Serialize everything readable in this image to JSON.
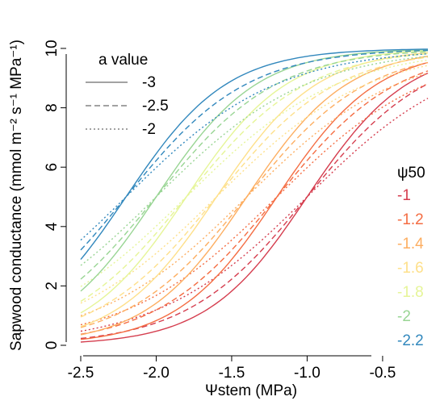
{
  "chart_data": {
    "type": "line",
    "xlabel": "Ψstem (MPa)",
    "ylabel": "Sapwood conductance (mmol m⁻² s⁻¹ MPa⁻¹)",
    "xlim": [
      -2.5,
      -0.2
    ],
    "ylim": [
      0,
      10
    ],
    "x_ticks": [
      -2.5,
      -2.0,
      -1.5,
      -1.0,
      -0.5
    ],
    "x_tick_labels": [
      "-2.5",
      "-2.0",
      "-1.5",
      "-1.0",
      "-0.5"
    ],
    "y_ticks": [
      0,
      2,
      4,
      6,
      8,
      10
    ],
    "y_tick_labels": [
      "0",
      "2",
      "4",
      "6",
      "8",
      "10"
    ],
    "gmax": 10,
    "legend_a": {
      "title": "a value",
      "placement": "top-left",
      "entries": [
        {
          "label": "-3",
          "dash": "solid"
        },
        {
          "label": "-2.5",
          "dash": "dashed"
        },
        {
          "label": "-2",
          "dash": "dotted"
        }
      ]
    },
    "legend_psi": {
      "title": "ψ50",
      "placement": "right",
      "entries": [
        {
          "label": "-1",
          "color": "#d53e4f"
        },
        {
          "label": "-1.2",
          "color": "#f46d43"
        },
        {
          "label": "-1.4",
          "color": "#fdae61"
        },
        {
          "label": "-1.6",
          "color": "#fee08b"
        },
        {
          "label": "-1.8",
          "color": "#e6f598"
        },
        {
          "label": "-2",
          "color": "#99d594"
        },
        {
          "label": "-2.2",
          "color": "#3288bd"
        }
      ]
    },
    "series": [
      {
        "psi50": -1.0,
        "a": -3.0,
        "x": [
          -2.5,
          -2.25,
          -2.0,
          -1.75,
          -1.5,
          -1.25,
          -1.0,
          -0.75,
          -0.5,
          -0.2
        ],
        "y": [
          0.11,
          0.23,
          0.47,
          0.98,
          1.92,
          3.47,
          5.0,
          6.66,
          8.18,
          9.17
        ]
      },
      {
        "psi50": -1.0,
        "a": -2.5,
        "x": [
          -2.5,
          -2.25,
          -2.0,
          -1.75,
          -1.5,
          -1.25,
          -1.0,
          -0.75,
          -0.5,
          -0.2
        ],
        "y": [
          0.23,
          0.43,
          0.76,
          1.33,
          2.23,
          3.55,
          5.0,
          6.45,
          7.78,
          8.8
        ]
      },
      {
        "psi50": -1.0,
        "a": -2.0,
        "x": [
          -2.5,
          -2.25,
          -2.0,
          -1.75,
          -1.5,
          -1.25,
          -1.0,
          -0.75,
          -0.5,
          -0.2
        ],
        "y": [
          0.47,
          0.76,
          1.19,
          1.82,
          2.69,
          3.78,
          5.0,
          6.22,
          7.31,
          8.32
        ]
      },
      {
        "psi50": -1.2,
        "a": -3.0,
        "x": [
          -2.5,
          -2.25,
          -2.0,
          -1.75,
          -1.5,
          -1.25,
          -1.0,
          -0.75,
          -0.5,
          -0.2
        ],
        "y": [
          0.2,
          0.41,
          0.83,
          1.61,
          2.89,
          4.63,
          6.35,
          7.96,
          8.91,
          9.53
        ]
      },
      {
        "psi50": -1.2,
        "a": -2.5,
        "x": [
          -2.5,
          -2.25,
          -2.0,
          -1.75,
          -1.5,
          -1.25,
          -1.0,
          -0.75,
          -0.5,
          -0.2
        ],
        "y": [
          0.39,
          0.71,
          1.21,
          2.02,
          3.21,
          4.69,
          6.22,
          7.55,
          8.52,
          9.24
        ]
      },
      {
        "psi50": -1.2,
        "a": -2.0,
        "x": [
          -2.5,
          -2.25,
          -2.0,
          -1.75,
          -1.5,
          -1.25,
          -1.0,
          -0.75,
          -0.5,
          -0.2
        ],
        "y": [
          0.69,
          1.09,
          1.68,
          2.46,
          3.54,
          4.75,
          5.99,
          7.11,
          8.02,
          8.81
        ]
      },
      {
        "psi50": -1.4,
        "a": -3.0,
        "x": [
          -2.5,
          -2.25,
          -2.0,
          -1.75,
          -1.5,
          -1.25,
          -1.0,
          -0.75,
          -0.5,
          -0.2
        ],
        "y": [
          0.36,
          0.75,
          1.47,
          2.62,
          4.18,
          6.0,
          7.63,
          8.75,
          9.37,
          9.73
        ]
      },
      {
        "psi50": -1.4,
        "a": -2.5,
        "x": [
          -2.5,
          -2.25,
          -2.0,
          -1.75,
          -1.5,
          -1.25,
          -1.0,
          -0.75,
          -0.5,
          -0.2
        ],
        "y": [
          0.63,
          1.13,
          1.91,
          3.02,
          4.37,
          5.87,
          7.23,
          8.29,
          9.03,
          9.5
        ]
      },
      {
        "psi50": -1.4,
        "a": -2.0,
        "x": [
          -2.5,
          -2.25,
          -2.0,
          -1.75,
          -1.5,
          -1.25,
          -1.0,
          -0.75,
          -0.5,
          -0.2
        ],
        "y": [
          1.0,
          1.55,
          2.3,
          3.27,
          4.41,
          5.66,
          6.83,
          7.84,
          8.64,
          9.29
        ]
      },
      {
        "psi50": -1.6,
        "a": -3.0,
        "x": [
          -2.5,
          -2.25,
          -2.0,
          -1.75,
          -1.5,
          -1.25,
          -1.0,
          -0.75,
          -0.5,
          -0.2
        ],
        "y": [
          0.66,
          1.33,
          2.46,
          4.09,
          5.85,
          7.43,
          8.61,
          9.26,
          9.62,
          9.84
        ]
      },
      {
        "psi50": -1.6,
        "a": -2.5,
        "x": [
          -2.5,
          -2.25,
          -2.0,
          -1.75,
          -1.5,
          -1.25,
          -1.0,
          -0.75,
          -0.5,
          -0.2
        ],
        "y": [
          1.02,
          1.82,
          2.91,
          4.26,
          5.64,
          6.98,
          8.07,
          8.85,
          9.37,
          9.69
        ]
      },
      {
        "psi50": -1.6,
        "a": -2.0,
        "x": [
          -2.5,
          -2.25,
          -2.0,
          -1.75,
          -1.5,
          -1.25,
          -1.0,
          -0.75,
          -0.5,
          -0.2
        ],
        "y": [
          1.42,
          2.17,
          3.1,
          4.2,
          5.37,
          6.46,
          7.49,
          8.35,
          8.95,
          9.53
        ]
      },
      {
        "psi50": -1.8,
        "a": -3.0,
        "x": [
          -2.5,
          -2.25,
          -2.0,
          -1.75,
          -1.5,
          -1.25,
          -1.0,
          -0.75,
          -0.5,
          -0.2
        ],
        "y": [
          1.14,
          2.22,
          3.87,
          5.71,
          7.37,
          8.5,
          9.17,
          9.55,
          9.77,
          9.9
        ]
      },
      {
        "psi50": -1.8,
        "a": -2.5,
        "x": [
          -2.5,
          -2.25,
          -2.0,
          -1.75,
          -1.5,
          -1.25,
          -1.0,
          -0.75,
          -0.5,
          -0.2
        ],
        "y": [
          1.59,
          2.65,
          4.02,
          5.49,
          6.87,
          7.98,
          8.75,
          9.25,
          9.56,
          9.79
        ]
      },
      {
        "psi50": -1.8,
        "a": -2.0,
        "x": [
          -2.5,
          -2.25,
          -2.0,
          -1.75,
          -1.5,
          -1.25,
          -1.0,
          -0.75,
          -0.5,
          -0.2
        ],
        "y": [
          1.98,
          2.94,
          4.09,
          5.28,
          6.37,
          7.34,
          8.15,
          8.8,
          9.23,
          9.63
        ]
      },
      {
        "psi50": -2.0,
        "a": -3.0,
        "x": [
          -2.5,
          -2.25,
          -2.0,
          -1.75,
          -1.5,
          -1.25,
          -1.0,
          -0.75,
          -0.5,
          -0.2
        ],
        "y": [
          1.93,
          3.54,
          5.49,
          7.27,
          8.5,
          9.15,
          9.54,
          9.76,
          9.87,
          9.95
        ]
      },
      {
        "psi50": -2.0,
        "a": -2.5,
        "x": [
          -2.5,
          -2.25,
          -2.0,
          -1.75,
          -1.5,
          -1.25,
          -1.0,
          -0.75,
          -0.5,
          -0.2
        ],
        "y": [
          2.34,
          3.72,
          5.26,
          6.7,
          7.86,
          8.67,
          9.23,
          9.56,
          9.75,
          9.87
        ]
      },
      {
        "psi50": -2.0,
        "a": -2.0,
        "x": [
          -2.5,
          -2.25,
          -2.0,
          -1.75,
          -1.5,
          -1.25,
          -1.0,
          -0.75,
          -0.5,
          -0.2
        ],
        "y": [
          2.64,
          3.77,
          4.99,
          6.19,
          7.23,
          8.07,
          8.7,
          9.17,
          9.46,
          9.72
        ]
      },
      {
        "psi50": -2.2,
        "a": -3.0,
        "x": [
          -2.5,
          -2.25,
          -2.0,
          -1.75,
          -1.5,
          -1.25,
          -1.0,
          -0.75,
          -0.5,
          -0.2
        ],
        "y": [
          3.0,
          5.11,
          7.13,
          8.54,
          9.25,
          9.62,
          9.81,
          9.9,
          9.95,
          9.98
        ]
      },
      {
        "psi50": -2.2,
        "a": -2.5,
        "x": [
          -2.5,
          -2.25,
          -2.0,
          -1.75,
          -1.5,
          -1.25,
          -1.0,
          -0.75,
          -0.5,
          -0.2
        ],
        "y": [
          3.2,
          4.92,
          6.51,
          7.81,
          8.7,
          9.21,
          9.54,
          9.74,
          9.86,
          9.92
        ]
      },
      {
        "psi50": -2.2,
        "a": -2.0,
        "x": [
          -2.5,
          -2.25,
          -2.0,
          -1.75,
          -1.5,
          -1.25,
          -1.0,
          -0.75,
          -0.5,
          -0.2
        ],
        "y": [
          3.54,
          4.72,
          5.88,
          6.97,
          7.89,
          8.54,
          9.04,
          9.4,
          9.64,
          9.82
        ]
      }
    ]
  }
}
